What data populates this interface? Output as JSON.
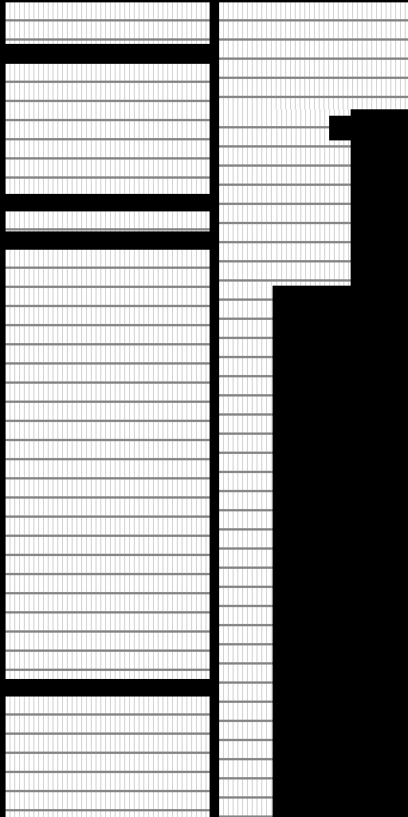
{
  "colors": {
    "background": "#000000",
    "panel": "#ffffff",
    "ruled_line": "#8a8a8a",
    "tick_line": "#c9c9c9"
  },
  "left_column": {
    "panels": [
      "panel-a",
      "panel-b",
      "panel-c",
      "panel-d",
      "panel-e"
    ]
  },
  "right_column": {
    "panels": [
      "panel-top",
      "panel-narrow",
      "panel-inset"
    ]
  }
}
